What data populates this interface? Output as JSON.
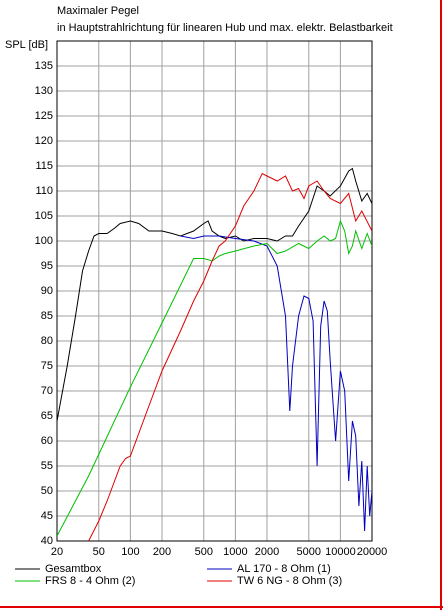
{
  "chart_data": {
    "type": "line",
    "title": "Maximaler Pegel",
    "subtitle": "in Hauptstrahlrichtung für linearen Hub und max. elektr. Belastbarkeit",
    "y_label": "SPL [dB]",
    "xscale": "log",
    "grid": true,
    "xlim": [
      20,
      20000
    ],
    "ylim": [
      40,
      140
    ],
    "xticks": [
      20,
      50,
      100,
      200,
      500,
      1000,
      2000,
      5000,
      10000,
      20000
    ],
    "yticks": [
      40,
      45,
      50,
      55,
      60,
      65,
      70,
      75,
      80,
      85,
      90,
      95,
      100,
      105,
      110,
      115,
      120,
      125,
      130,
      135
    ],
    "series": [
      {
        "name": "Gesamtbox",
        "color": "#000000",
        "x": [
          20,
          25,
          30,
          35,
          40,
          45,
          50,
          60,
          70,
          80,
          100,
          120,
          150,
          200,
          250,
          300,
          400,
          500,
          550,
          600,
          700,
          800,
          1000,
          1200,
          1500,
          2000,
          2500,
          3000,
          3500,
          4000,
          5000,
          6000,
          7000,
          8000,
          10000,
          12000,
          13000,
          14000,
          16000,
          18000,
          20000
        ],
        "values": [
          64,
          75,
          85,
          94,
          98,
          101,
          101.5,
          101.5,
          102.5,
          103.5,
          104,
          103.5,
          102,
          102,
          101.5,
          101,
          102,
          103.5,
          104,
          102,
          101,
          100.5,
          101,
          100,
          100.5,
          100.5,
          100,
          101,
          101,
          103,
          106,
          111,
          110,
          109,
          111,
          114,
          114.5,
          112,
          108,
          109.5,
          107.5
        ]
      },
      {
        "name": "AL 170 - 8 Ohm (1)",
        "color": "#0000c0",
        "x": [
          300,
          400,
          500,
          700,
          1000,
          1500,
          2000,
          2500,
          3000,
          3300,
          3500,
          4000,
          4500,
          5000,
          5500,
          6000,
          6500,
          7000,
          7500,
          8000,
          9000,
          10000,
          11000,
          12000,
          13000,
          14000,
          15000,
          16000,
          17000,
          18000,
          19000,
          20000
        ],
        "values": [
          101,
          100.5,
          101,
          101,
          100.5,
          100,
          99,
          95,
          85,
          66,
          75,
          85,
          89,
          88.5,
          84,
          55,
          83,
          88,
          86,
          76,
          60,
          74,
          70,
          52,
          64,
          61,
          47,
          56,
          42,
          55,
          45,
          50
        ]
      },
      {
        "name": "FRS 8 - 4 Ohm (2)",
        "color": "#00c000",
        "x": [
          20,
          40,
          100,
          200,
          400,
          500,
          600,
          700,
          800,
          1000,
          1500,
          2000,
          2500,
          3000,
          4000,
          5000,
          6000,
          7000,
          8000,
          9000,
          10000,
          11000,
          12000,
          13000,
          14000,
          16000,
          18000,
          20000
        ],
        "values": [
          41,
          53,
          70.8,
          83.6,
          96.5,
          96.5,
          96,
          97,
          97.5,
          98,
          99,
          99.5,
          97.5,
          98,
          99.5,
          98.5,
          100,
          101,
          100,
          100.5,
          104,
          102,
          97.5,
          99,
          102,
          98.5,
          101.5,
          99
        ]
      },
      {
        "name": "TW 6 NG - 8 Ohm (3)",
        "color": "#e00000",
        "x": [
          40,
          50,
          60,
          80,
          90,
          100,
          150,
          200,
          300,
          400,
          500,
          600,
          700,
          800,
          1000,
          1200,
          1500,
          1800,
          2000,
          2500,
          3000,
          3500,
          4000,
          4500,
          5000,
          6000,
          7000,
          8000,
          10000,
          12000,
          14000,
          16000,
          20000
        ],
        "values": [
          40,
          44,
          48,
          55,
          56.5,
          57,
          67,
          74,
          82,
          88,
          92,
          96,
          99,
          100,
          103,
          107,
          110,
          113.5,
          113,
          112,
          113,
          110,
          110.5,
          108.5,
          111,
          112,
          110,
          108.5,
          107.5,
          109.5,
          104,
          106,
          102
        ]
      }
    ]
  }
}
